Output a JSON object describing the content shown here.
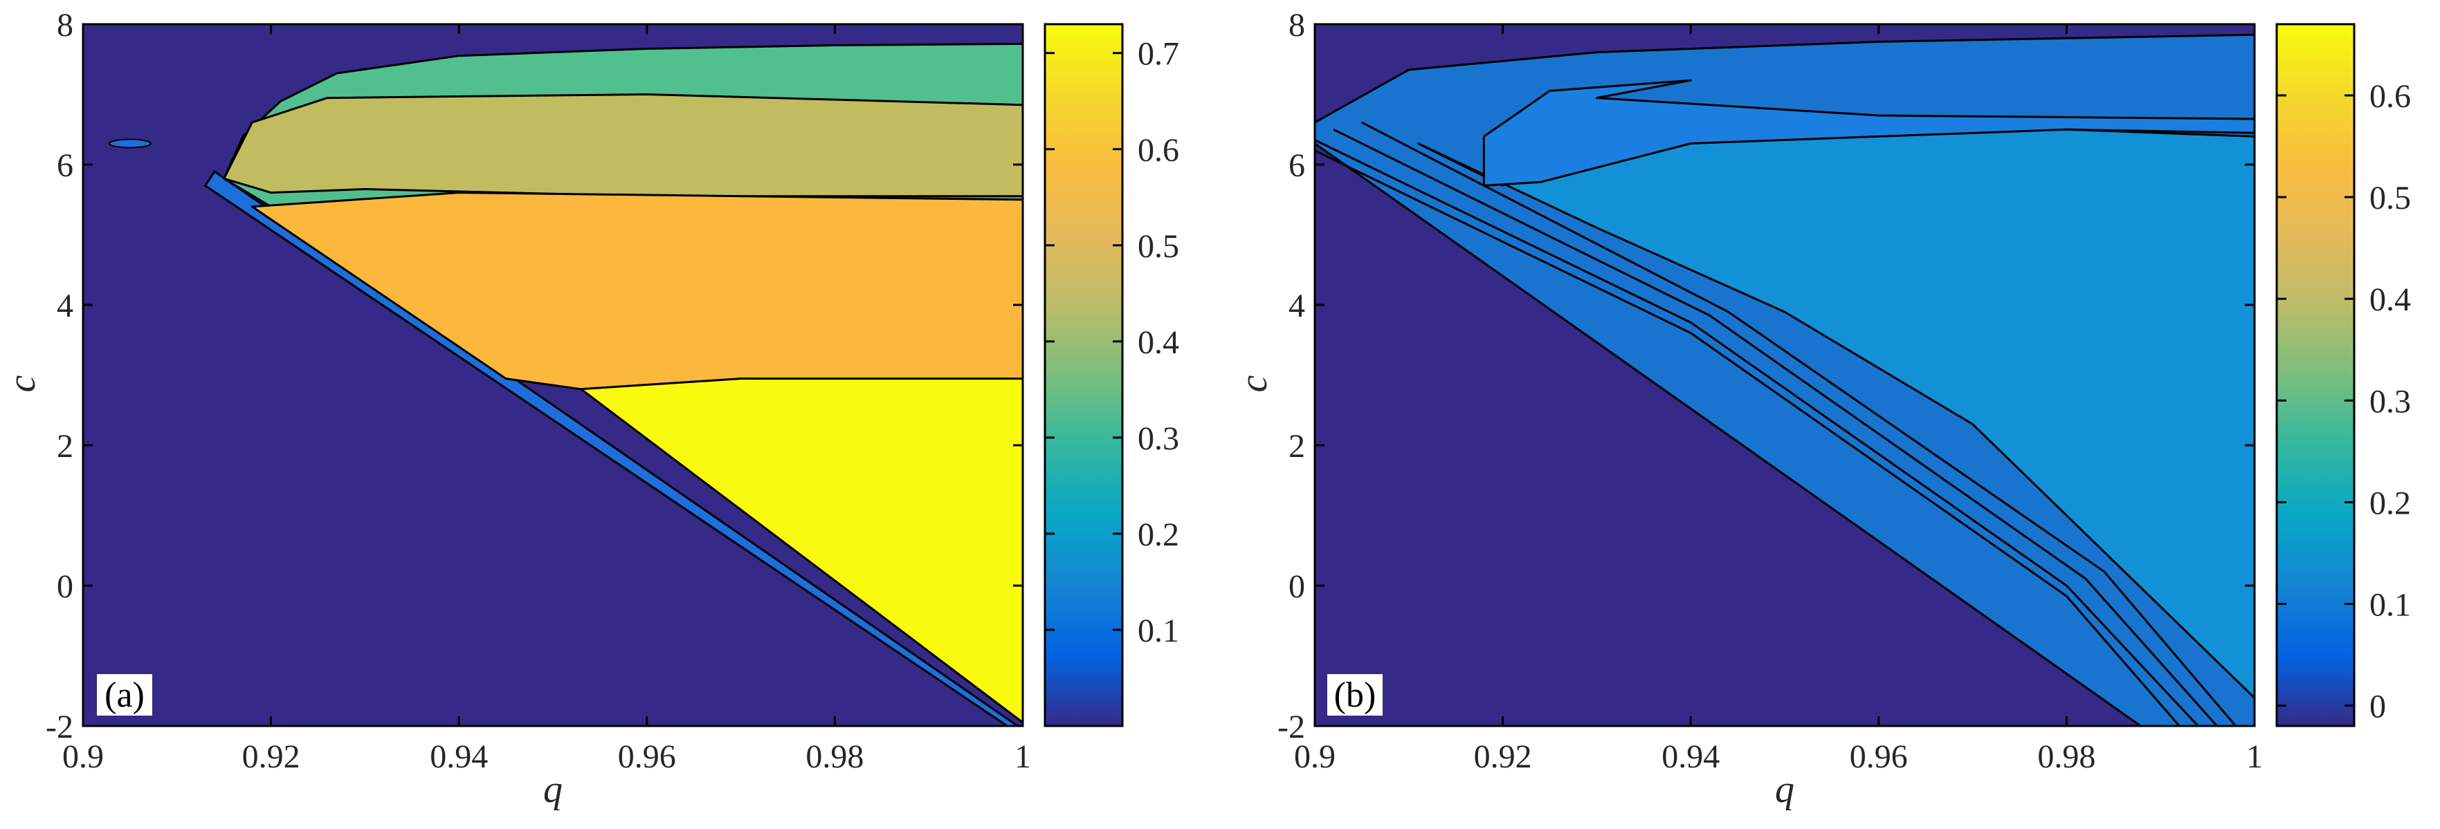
{
  "chart_data": [
    {
      "type": "contourf",
      "panel_label": "(a)",
      "xlabel": "q",
      "ylabel": "c",
      "xlim": [
        0.9,
        1.0
      ],
      "ylim": [
        -2,
        8
      ],
      "xticks": [
        0.9,
        0.92,
        0.94,
        0.96,
        0.98,
        1.0
      ],
      "xtick_labels": [
        "0.9",
        "0.92",
        "0.94",
        "0.96",
        "0.98",
        "1"
      ],
      "yticks": [
        -2,
        0,
        2,
        4,
        6,
        8
      ],
      "ytick_labels": [
        "-2",
        "0",
        "2",
        "4",
        "6",
        "8"
      ],
      "colorbar": {
        "range": [
          0,
          0.73
        ],
        "ticks": [
          0.1,
          0.2,
          0.3,
          0.4,
          0.5,
          0.6,
          0.7
        ],
        "tick_labels": [
          "0.1",
          "0.2",
          "0.3",
          "0.4",
          "0.5",
          "0.6",
          "0.7"
        ]
      },
      "background_color": "#352A87",
      "regions": [
        {
          "name": "thin-edge",
          "color": "#1E6EDC",
          "points": [
            [
              0.914,
              5.9
            ],
            [
              1.0,
              -2.05
            ],
            [
              1.0,
              -2.15
            ],
            [
              0.913,
              5.7
            ]
          ]
        },
        {
          "name": "upper-band",
          "color": "#52BF8F",
          "points": [
            [
              0.915,
              5.8
            ],
            [
              0.917,
              6.4
            ],
            [
              0.921,
              6.9
            ],
            [
              0.927,
              7.3
            ],
            [
              0.94,
              7.55
            ],
            [
              0.96,
              7.65
            ],
            [
              0.98,
              7.7
            ],
            [
              1.0,
              7.72
            ],
            [
              1.0,
              5.5
            ],
            [
              0.95,
              5.4
            ],
            [
              0.92,
              5.4
            ]
          ]
        },
        {
          "name": "middle-band",
          "color": "#C2BC60",
          "points": [
            [
              0.915,
              5.8
            ],
            [
              0.918,
              6.6
            ],
            [
              0.926,
              6.95
            ],
            [
              0.96,
              7.0
            ],
            [
              1.0,
              6.85
            ],
            [
              1.0,
              5.55
            ],
            [
              0.96,
              5.55
            ],
            [
              0.93,
              5.65
            ],
            [
              0.92,
              5.6
            ]
          ]
        },
        {
          "name": "orange-band",
          "color": "#FBB83D",
          "points": [
            [
              0.918,
              5.4
            ],
            [
              0.94,
              5.6
            ],
            [
              0.97,
              5.55
            ],
            [
              1.0,
              5.5
            ],
            [
              1.0,
              2.9
            ],
            [
              0.97,
              2.95
            ],
            [
              0.953,
              2.8
            ],
            [
              0.945,
              2.95
            ]
          ]
        },
        {
          "name": "yellow-core",
          "color": "#F9FB0F",
          "points": [
            [
              0.953,
              2.8
            ],
            [
              0.97,
              2.95
            ],
            [
              1.0,
              2.95
            ],
            [
              1.0,
              -1.95
            ]
          ]
        }
      ],
      "small_spot": {
        "q": 0.905,
        "c": 6.3,
        "color": "#1E6EDC"
      }
    },
    {
      "type": "contourf",
      "panel_label": "(b)",
      "xlabel": "q",
      "ylabel": "c",
      "xlim": [
        0.9,
        1.0
      ],
      "ylim": [
        -2,
        8
      ],
      "xticks": [
        0.9,
        0.92,
        0.94,
        0.96,
        0.98,
        1.0
      ],
      "xtick_labels": [
        "0.9",
        "0.92",
        "0.94",
        "0.96",
        "0.98",
        "1"
      ],
      "yticks": [
        -2,
        0,
        2,
        4,
        6,
        8
      ],
      "ytick_labels": [
        "-2",
        "0",
        "2",
        "4",
        "6",
        "8"
      ],
      "colorbar": {
        "range": [
          -0.02,
          0.67
        ],
        "ticks": [
          0,
          0.1,
          0.2,
          0.3,
          0.4,
          0.5,
          0.6
        ],
        "tick_labels": [
          "0",
          "0.1",
          "0.2",
          "0.3",
          "0.4",
          "0.5",
          "0.6"
        ]
      },
      "background_color": "#352A87",
      "regions": [
        {
          "name": "wedge-outer",
          "color": "#1874CF",
          "points": [
            [
              0.9,
              6.3
            ],
            [
              0.9,
              6.6
            ],
            [
              0.91,
              7.35
            ],
            [
              0.93,
              7.6
            ],
            [
              0.96,
              7.75
            ],
            [
              1.0,
              7.85
            ],
            [
              1.0,
              -2.2
            ],
            [
              0.99,
              -2.2
            ]
          ]
        },
        {
          "name": "wedge-inner",
          "color": "#1291D6",
          "points": [
            [
              0.911,
              6.3
            ],
            [
              0.93,
              5.1
            ],
            [
              0.95,
              3.9
            ],
            [
              0.97,
              2.3
            ],
            [
              0.99,
              -0.3
            ],
            [
              1.0,
              -1.6
            ],
            [
              1.0,
              6.4
            ],
            [
              0.96,
              6.6
            ],
            [
              0.93,
              6.6
            ],
            [
              0.92,
              5.7
            ]
          ]
        },
        {
          "name": "top-pocket",
          "color": "#1A7FE0",
          "points": [
            [
              0.918,
              5.7
            ],
            [
              0.918,
              6.4
            ],
            [
              0.925,
              7.05
            ],
            [
              0.94,
              7.2
            ],
            [
              0.93,
              6.95
            ],
            [
              0.96,
              6.7
            ],
            [
              1.0,
              6.65
            ],
            [
              1.0,
              6.45
            ],
            [
              0.98,
              6.5
            ],
            [
              0.94,
              6.3
            ],
            [
              0.924,
              5.75
            ]
          ]
        }
      ],
      "contour_lines": [
        [
          [
            0.9,
            6.2
          ],
          [
            0.94,
            3.6
          ],
          [
            0.98,
            -0.15
          ],
          [
            0.992,
            -2.0
          ]
        ],
        [
          [
            0.9,
            6.35
          ],
          [
            0.94,
            3.75
          ],
          [
            0.98,
            0.0
          ],
          [
            0.994,
            -2.0
          ]
        ],
        [
          [
            0.902,
            6.5
          ],
          [
            0.942,
            3.85
          ],
          [
            0.982,
            0.1
          ],
          [
            0.996,
            -2.0
          ]
        ],
        [
          [
            0.905,
            6.6
          ],
          [
            0.944,
            3.9
          ],
          [
            0.984,
            0.2
          ],
          [
            0.998,
            -2.0
          ]
        ]
      ]
    }
  ]
}
